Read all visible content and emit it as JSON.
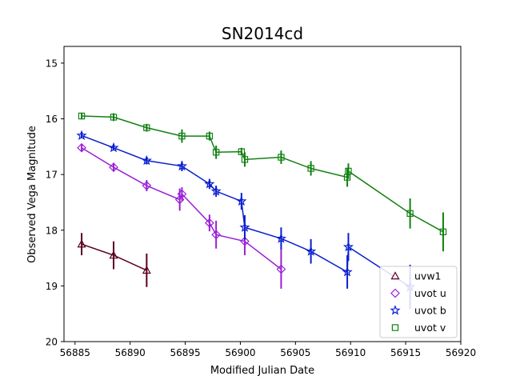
{
  "chart_data": {
    "type": "scatter",
    "title": "SN2014cd",
    "xlabel": "Modified Julian Date",
    "ylabel": "Observed Vega Magnitude",
    "xlim": [
      56884,
      56920
    ],
    "ylim": [
      20,
      14.7
    ],
    "y_inverted": true,
    "x_ticks": [
      56885,
      56890,
      56895,
      56900,
      56905,
      56910,
      56915,
      56920
    ],
    "y_ticks": [
      15,
      16,
      17,
      18,
      19,
      20
    ],
    "grid": false,
    "legend_position": "lower-right",
    "series": [
      {
        "name": "uvw1",
        "color": "#5a0021",
        "marker": "triangle",
        "points": [
          {
            "x": 56885.6,
            "y": 18.25,
            "err": 0.2
          },
          {
            "x": 56888.5,
            "y": 18.45,
            "err": 0.25
          },
          {
            "x": 56891.5,
            "y": 18.72,
            "err": 0.3
          }
        ]
      },
      {
        "name": "uvot u",
        "color": "#9a1fd6",
        "marker": "diamond",
        "points": [
          {
            "x": 56885.6,
            "y": 16.52,
            "err": 0.06
          },
          {
            "x": 56888.5,
            "y": 16.87,
            "err": 0.08
          },
          {
            "x": 56891.5,
            "y": 17.2,
            "err": 0.1
          },
          {
            "x": 56894.5,
            "y": 17.45,
            "err": 0.2
          },
          {
            "x": 56894.7,
            "y": 17.35,
            "err": 0.12
          },
          {
            "x": 56897.2,
            "y": 17.87,
            "err": 0.15
          },
          {
            "x": 56897.8,
            "y": 18.08,
            "err": 0.25
          },
          {
            "x": 56900.4,
            "y": 18.2,
            "err": 0.25
          },
          {
            "x": 56903.7,
            "y": 18.7,
            "err": 0.35
          }
        ]
      },
      {
        "name": "uvot b",
        "color": "#0a1fd0",
        "marker": "star",
        "points": [
          {
            "x": 56885.6,
            "y": 16.3,
            "err": 0.05
          },
          {
            "x": 56888.5,
            "y": 16.52,
            "err": 0.05
          },
          {
            "x": 56891.5,
            "y": 16.75,
            "err": 0.07
          },
          {
            "x": 56894.7,
            "y": 16.85,
            "err": 0.09
          },
          {
            "x": 56897.2,
            "y": 17.17,
            "err": 0.09
          },
          {
            "x": 56897.8,
            "y": 17.3,
            "err": 0.1
          },
          {
            "x": 56900.1,
            "y": 17.48,
            "err": 0.15
          },
          {
            "x": 56900.4,
            "y": 17.95,
            "err": 0.22
          },
          {
            "x": 56903.7,
            "y": 18.15,
            "err": 0.2
          },
          {
            "x": 56906.4,
            "y": 18.38,
            "err": 0.22
          },
          {
            "x": 56909.7,
            "y": 18.75,
            "err": 0.3
          },
          {
            "x": 56909.8,
            "y": 18.3,
            "err": 0.25
          },
          {
            "x": 56915.4,
            "y": 19.02,
            "err": 0.4
          }
        ]
      },
      {
        "name": "uvot v",
        "color": "#128012",
        "marker": "square",
        "points": [
          {
            "x": 56885.6,
            "y": 15.95,
            "err": 0.06
          },
          {
            "x": 56888.5,
            "y": 15.97,
            "err": 0.07
          },
          {
            "x": 56891.5,
            "y": 16.16,
            "err": 0.07
          },
          {
            "x": 56894.7,
            "y": 16.31,
            "err": 0.12
          },
          {
            "x": 56897.2,
            "y": 16.31,
            "err": 0.08
          },
          {
            "x": 56897.8,
            "y": 16.6,
            "err": 0.12
          },
          {
            "x": 56900.1,
            "y": 16.59,
            "err": 0.07
          },
          {
            "x": 56900.4,
            "y": 16.73,
            "err": 0.13
          },
          {
            "x": 56903.7,
            "y": 16.69,
            "err": 0.12
          },
          {
            "x": 56906.4,
            "y": 16.89,
            "err": 0.13
          },
          {
            "x": 56909.7,
            "y": 17.05,
            "err": 0.17
          },
          {
            "x": 56909.8,
            "y": 16.94,
            "err": 0.14
          },
          {
            "x": 56915.4,
            "y": 17.7,
            "err": 0.27
          },
          {
            "x": 56918.4,
            "y": 18.03,
            "err": 0.35
          }
        ]
      }
    ]
  }
}
